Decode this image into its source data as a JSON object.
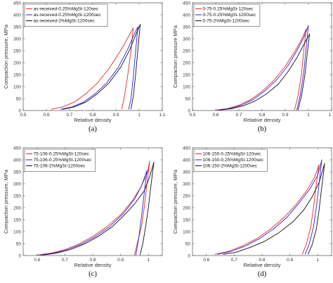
{
  "figure": {
    "colors": {
      "red": "#e8282b",
      "blue": "#2a22e6",
      "black": "#111111",
      "axis": "#333333"
    }
  },
  "chart_data": [
    {
      "panel_caption": "(a)",
      "type": "line",
      "xlabel": "Relative density",
      "ylabel": "Compaction pressure, MPa",
      "xlim": [
        0.5,
        1.1
      ],
      "ylim": [
        0,
        450
      ],
      "xticks": [
        "0.5",
        "0.6",
        "0.7",
        "0.8",
        "0.9",
        "1",
        "1.1"
      ],
      "yticks": [
        "0",
        "50",
        "100",
        "150",
        "200",
        "250",
        "300",
        "350",
        "400",
        "450"
      ],
      "grid": false,
      "legend_position": "top-left",
      "series": [
        {
          "name": "as-received-0.25%MgSt-120sec",
          "color": "#e8282b",
          "x": [
            0.62,
            0.67,
            0.72,
            0.77,
            0.82,
            0.87,
            0.92,
            0.955,
            0.975,
            0.965,
            0.95,
            0.935,
            0.925
          ],
          "y": [
            5,
            15,
            35,
            70,
            115,
            175,
            250,
            310,
            345,
            250,
            140,
            50,
            5
          ]
        },
        {
          "name": "as-received-0.25%MgSt-1200sec",
          "color": "#2a22e6",
          "x": [
            0.66,
            0.71,
            0.76,
            0.81,
            0.86,
            0.91,
            0.95,
            0.975,
            0.995,
            0.985,
            0.975,
            0.965,
            0.955
          ],
          "y": [
            5,
            15,
            35,
            70,
            115,
            180,
            255,
            310,
            350,
            250,
            140,
            50,
            5
          ]
        },
        {
          "name": "as-received-2%MgSt-1200sec",
          "color": "#111111",
          "x": [
            0.67,
            0.72,
            0.77,
            0.82,
            0.87,
            0.92,
            0.96,
            0.985,
            1.005,
            0.995,
            0.985,
            0.975,
            0.965
          ],
          "y": [
            5,
            15,
            35,
            70,
            115,
            180,
            255,
            315,
            360,
            260,
            150,
            60,
            5
          ]
        }
      ]
    },
    {
      "panel_caption": "(b)",
      "type": "line",
      "xlabel": "Relative density",
      "ylabel": "Compaction pressure MPa",
      "xlim": [
        0.5,
        1.1
      ],
      "ylim": [
        0,
        450
      ],
      "xticks": [
        "0.5",
        "0.6",
        "0.7",
        "0.8",
        "0.9",
        "1",
        "1.1"
      ],
      "yticks": [
        "0",
        "50",
        "100",
        "150",
        "200",
        "250",
        "300",
        "350",
        "400",
        "450"
      ],
      "grid": false,
      "legend_position": "top-left",
      "series": [
        {
          "name": "0-75-0.25%MgSt-120sec",
          "color": "#e8282b",
          "x": [
            0.6,
            0.65,
            0.7,
            0.75,
            0.8,
            0.85,
            0.9,
            0.94,
            0.97,
            0.99,
            0.98,
            0.97,
            0.955,
            0.94
          ],
          "y": [
            2,
            8,
            22,
            45,
            80,
            125,
            185,
            245,
            295,
            340,
            250,
            150,
            60,
            2
          ]
        },
        {
          "name": "0-75-0.25%MgSt-1200sec",
          "color": "#2a22e6",
          "x": [
            0.61,
            0.66,
            0.71,
            0.76,
            0.81,
            0.86,
            0.91,
            0.95,
            0.98,
            1.0,
            0.99,
            0.98,
            0.965,
            0.95
          ],
          "y": [
            2,
            8,
            22,
            45,
            80,
            125,
            185,
            250,
            305,
            355,
            260,
            160,
            65,
            2
          ]
        },
        {
          "name": "0-75-2%MgSt-1200sec",
          "color": "#111111",
          "x": [
            0.62,
            0.67,
            0.72,
            0.77,
            0.82,
            0.87,
            0.91,
            0.95,
            0.98,
            1.005,
            0.995,
            0.985,
            0.97,
            0.955
          ],
          "y": [
            2,
            8,
            20,
            40,
            70,
            110,
            160,
            220,
            275,
            320,
            240,
            150,
            60,
            2
          ]
        }
      ]
    },
    {
      "panel_caption": "(c)",
      "type": "line",
      "xlabel": "Relative density",
      "ylabel": "Compaction pressure, MPa",
      "xlim": [
        0.55,
        1.05
      ],
      "ylim": [
        0,
        450
      ],
      "xticks": [
        "0.6",
        "0.7",
        "0.8",
        "0.9",
        "1"
      ],
      "yticks": [
        "0",
        "50",
        "100",
        "150",
        "200",
        "250",
        "300",
        "350",
        "400",
        "450"
      ],
      "grid": false,
      "legend_position": "top-left",
      "series": [
        {
          "name": "75-106-0.25%MgSt-120sec",
          "color": "#e8282b",
          "x": [
            0.6,
            0.65,
            0.7,
            0.75,
            0.8,
            0.85,
            0.9,
            0.94,
            0.97,
            0.995,
            1.005,
            0.995,
            0.985,
            0.975,
            0.96,
            0.95
          ],
          "y": [
            2,
            10,
            25,
            48,
            80,
            120,
            170,
            225,
            280,
            340,
            395,
            300,
            200,
            120,
            50,
            2
          ]
        },
        {
          "name": "75-106-0.25%MgSt-1200sec",
          "color": "#2a22e6",
          "x": [
            0.61,
            0.66,
            0.71,
            0.76,
            0.81,
            0.86,
            0.91,
            0.95,
            0.975,
            0.995,
            0.985,
            0.975,
            0.965,
            0.955
          ],
          "y": [
            2,
            10,
            25,
            48,
            80,
            120,
            175,
            235,
            290,
            355,
            260,
            160,
            70,
            2
          ]
        },
        {
          "name": "75-106-2%MgSt-1200sec",
          "color": "#111111",
          "x": [
            0.62,
            0.67,
            0.72,
            0.77,
            0.82,
            0.87,
            0.91,
            0.95,
            0.985,
            1.005,
            1.02,
            1.01,
            1.0,
            0.99,
            0.98,
            0.97
          ],
          "y": [
            2,
            10,
            25,
            48,
            80,
            120,
            165,
            215,
            270,
            330,
            390,
            300,
            200,
            120,
            50,
            2
          ]
        }
      ]
    },
    {
      "panel_caption": "(d)",
      "type": "line",
      "xlabel": "Relative density",
      "ylabel": "Compaction pressure, MPa",
      "xlim": [
        0.55,
        1.05
      ],
      "ylim": [
        0,
        450
      ],
      "xticks": [
        "0.6",
        "0.7",
        "0.8",
        "0.9",
        "1"
      ],
      "yticks": [
        "0",
        "50",
        "100",
        "150",
        "200",
        "250",
        "300",
        "350",
        "400",
        "450"
      ],
      "grid": false,
      "legend_position": "top-left",
      "series": [
        {
          "name": "106-150-0.25%MgSt-120sec",
          "color": "#e8282b",
          "x": [
            0.63,
            0.68,
            0.73,
            0.78,
            0.83,
            0.88,
            0.92,
            0.96,
            0.99,
            1.005,
            0.995,
            0.985,
            0.975,
            0.96,
            0.945
          ],
          "y": [
            5,
            18,
            40,
            70,
            110,
            160,
            210,
            270,
            330,
            380,
            300,
            200,
            120,
            50,
            5
          ]
        },
        {
          "name": "106-150-0.25%MgSt-1200sec",
          "color": "#2a22e6",
          "x": [
            0.64,
            0.69,
            0.74,
            0.79,
            0.84,
            0.89,
            0.93,
            0.97,
            1.0,
            1.015,
            1.005,
            0.995,
            0.985,
            0.97,
            0.955
          ],
          "y": [
            5,
            18,
            40,
            70,
            110,
            160,
            215,
            275,
            335,
            400,
            300,
            200,
            120,
            50,
            5
          ]
        },
        {
          "name": "106-150-2%MgSt-1200sec",
          "color": "#111111",
          "x": [
            0.66,
            0.71,
            0.76,
            0.81,
            0.86,
            0.91,
            0.95,
            0.98,
            1.005,
            1.025,
            1.015,
            1.005,
            0.995,
            0.98,
            0.965
          ],
          "y": [
            5,
            15,
            35,
            60,
            95,
            140,
            190,
            245,
            305,
            385,
            290,
            190,
            110,
            45,
            5
          ]
        }
      ]
    }
  ]
}
